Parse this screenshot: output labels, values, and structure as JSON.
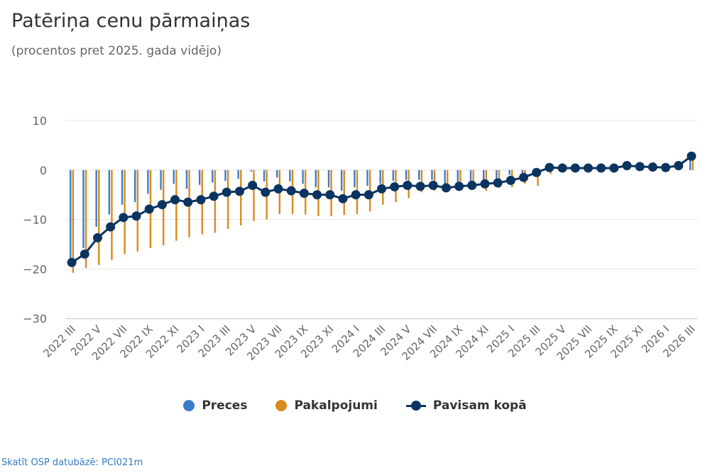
{
  "chart_data": {
    "type": "bar",
    "title": "Patēriņa cenu pārmaiņas",
    "subtitle": "(procentos pret 2025. gada vidējo)",
    "ylim": [
      -30,
      10
    ],
    "yticks": [
      10,
      0,
      -10,
      -20,
      -30
    ],
    "ytick_labels": [
      "10",
      "0",
      "−10",
      "−20",
      "−30"
    ],
    "categories": [
      "2022 III",
      "2022 IV",
      "2022 V",
      "2022 VI",
      "2022 VII",
      "2022 VIII",
      "2022 IX",
      "2022 X",
      "2022 XI",
      "2022 XII",
      "2023 I",
      "2023 II",
      "2023 III",
      "2023 IV",
      "2023 V",
      "2023 VI",
      "2023 VII",
      "2023 VIII",
      "2023 IX",
      "2023 X",
      "2023 XI",
      "2023 XII",
      "2024 I",
      "2024 II",
      "2024 III",
      "2024 IV",
      "2024 V",
      "2024 VI",
      "2024 VII",
      "2024 VIII",
      "2024 IX",
      "2024 X",
      "2024 XI",
      "2024 XII",
      "2025 I",
      "2025 II",
      "2025 III",
      "2025 IV",
      "2025 V",
      "2025 VI",
      "2025 VII",
      "2025 VIII",
      "2025 IX",
      "2025 X",
      "2025 XI",
      "2025 XII",
      "2026 I",
      "2026 II",
      "2026 III"
    ],
    "shown_tick_labels": [
      "2022 III",
      "2022 V",
      "2022 VII",
      "2022 IX",
      "2022 XI",
      "2023 I",
      "2023 III",
      "2023 V",
      "2023 VII",
      "2023 IX",
      "2023 XI",
      "2024 I",
      "2024 III",
      "2024 V",
      "2024 VII",
      "2024 IX",
      "2024 XI",
      "2025 I",
      "2025 III",
      "2025 V",
      "2025 VII",
      "2025 IX",
      "2025 XI",
      "2026 I",
      "2026 III"
    ],
    "series": [
      {
        "name": "Preces",
        "type": "bar",
        "color": "#3d7cc9",
        "values": [
          -18.5,
          -15.8,
          -11.5,
          -9,
          -7,
          -6.5,
          -4.8,
          -4,
          -2.8,
          -3.8,
          -3,
          -2.5,
          -2.2,
          -1.8,
          -0.3,
          -2.3,
          -1.5,
          -2.3,
          -2.8,
          -3.5,
          -3.5,
          -4.2,
          -3.5,
          -3.2,
          -2.8,
          -2.2,
          -2,
          -2,
          -2,
          -3,
          -3.2,
          -2.8,
          -2.2,
          -1.8,
          -1,
          -0.6,
          -0.3,
          0.3,
          0.2,
          0.2,
          0.2,
          0.2,
          0.3,
          0.2,
          0.2,
          0.3,
          0.2,
          0.5,
          2.3
        ]
      },
      {
        "name": "Pakalpojumi",
        "type": "bar",
        "color": "#d98a1c",
        "values": [
          -20.8,
          -19.8,
          -19.2,
          -18.2,
          -17,
          -16.5,
          -15.8,
          -15.2,
          -14.3,
          -13.6,
          -13,
          -12.7,
          -11.9,
          -11.2,
          -10.3,
          -10,
          -8.9,
          -8.9,
          -9,
          -9.3,
          -9.3,
          -9.1,
          -8.9,
          -8.4,
          -7,
          -6.5,
          -5.7,
          -4.5,
          -4.2,
          -3.8,
          -3.8,
          -3.3,
          -4.2,
          -3.6,
          -3.5,
          -2.8,
          -3.2,
          -0.8,
          -0.5,
          -0.3,
          -0.2,
          0,
          0.2,
          0.3,
          0.5,
          1.6,
          0.9,
          1.2,
          2.1
        ]
      },
      {
        "name": "Pavisam kopā",
        "type": "line",
        "color": "#0b3461",
        "values": [
          -18.7,
          -17,
          -13.7,
          -11.5,
          -9.6,
          -9.3,
          -7.9,
          -7,
          -6,
          -6.5,
          -6,
          -5.3,
          -4.5,
          -4.3,
          -3.1,
          -4.5,
          -3.8,
          -4.2,
          -4.7,
          -5,
          -5,
          -5.8,
          -5,
          -5,
          -3.8,
          -3.4,
          -3.1,
          -3.3,
          -3.1,
          -3.6,
          -3.3,
          -3.1,
          -2.8,
          -2.6,
          -2.1,
          -1.5,
          -0.5,
          0.5,
          0.4,
          0.4,
          0.4,
          0.4,
          0.4,
          0.9,
          0.7,
          0.6,
          0.5,
          0.9,
          2.8
        ]
      }
    ],
    "legend_position": "bottom",
    "grid": true
  },
  "source_link": "Skatīt OSP datubāzē: PCI021m"
}
